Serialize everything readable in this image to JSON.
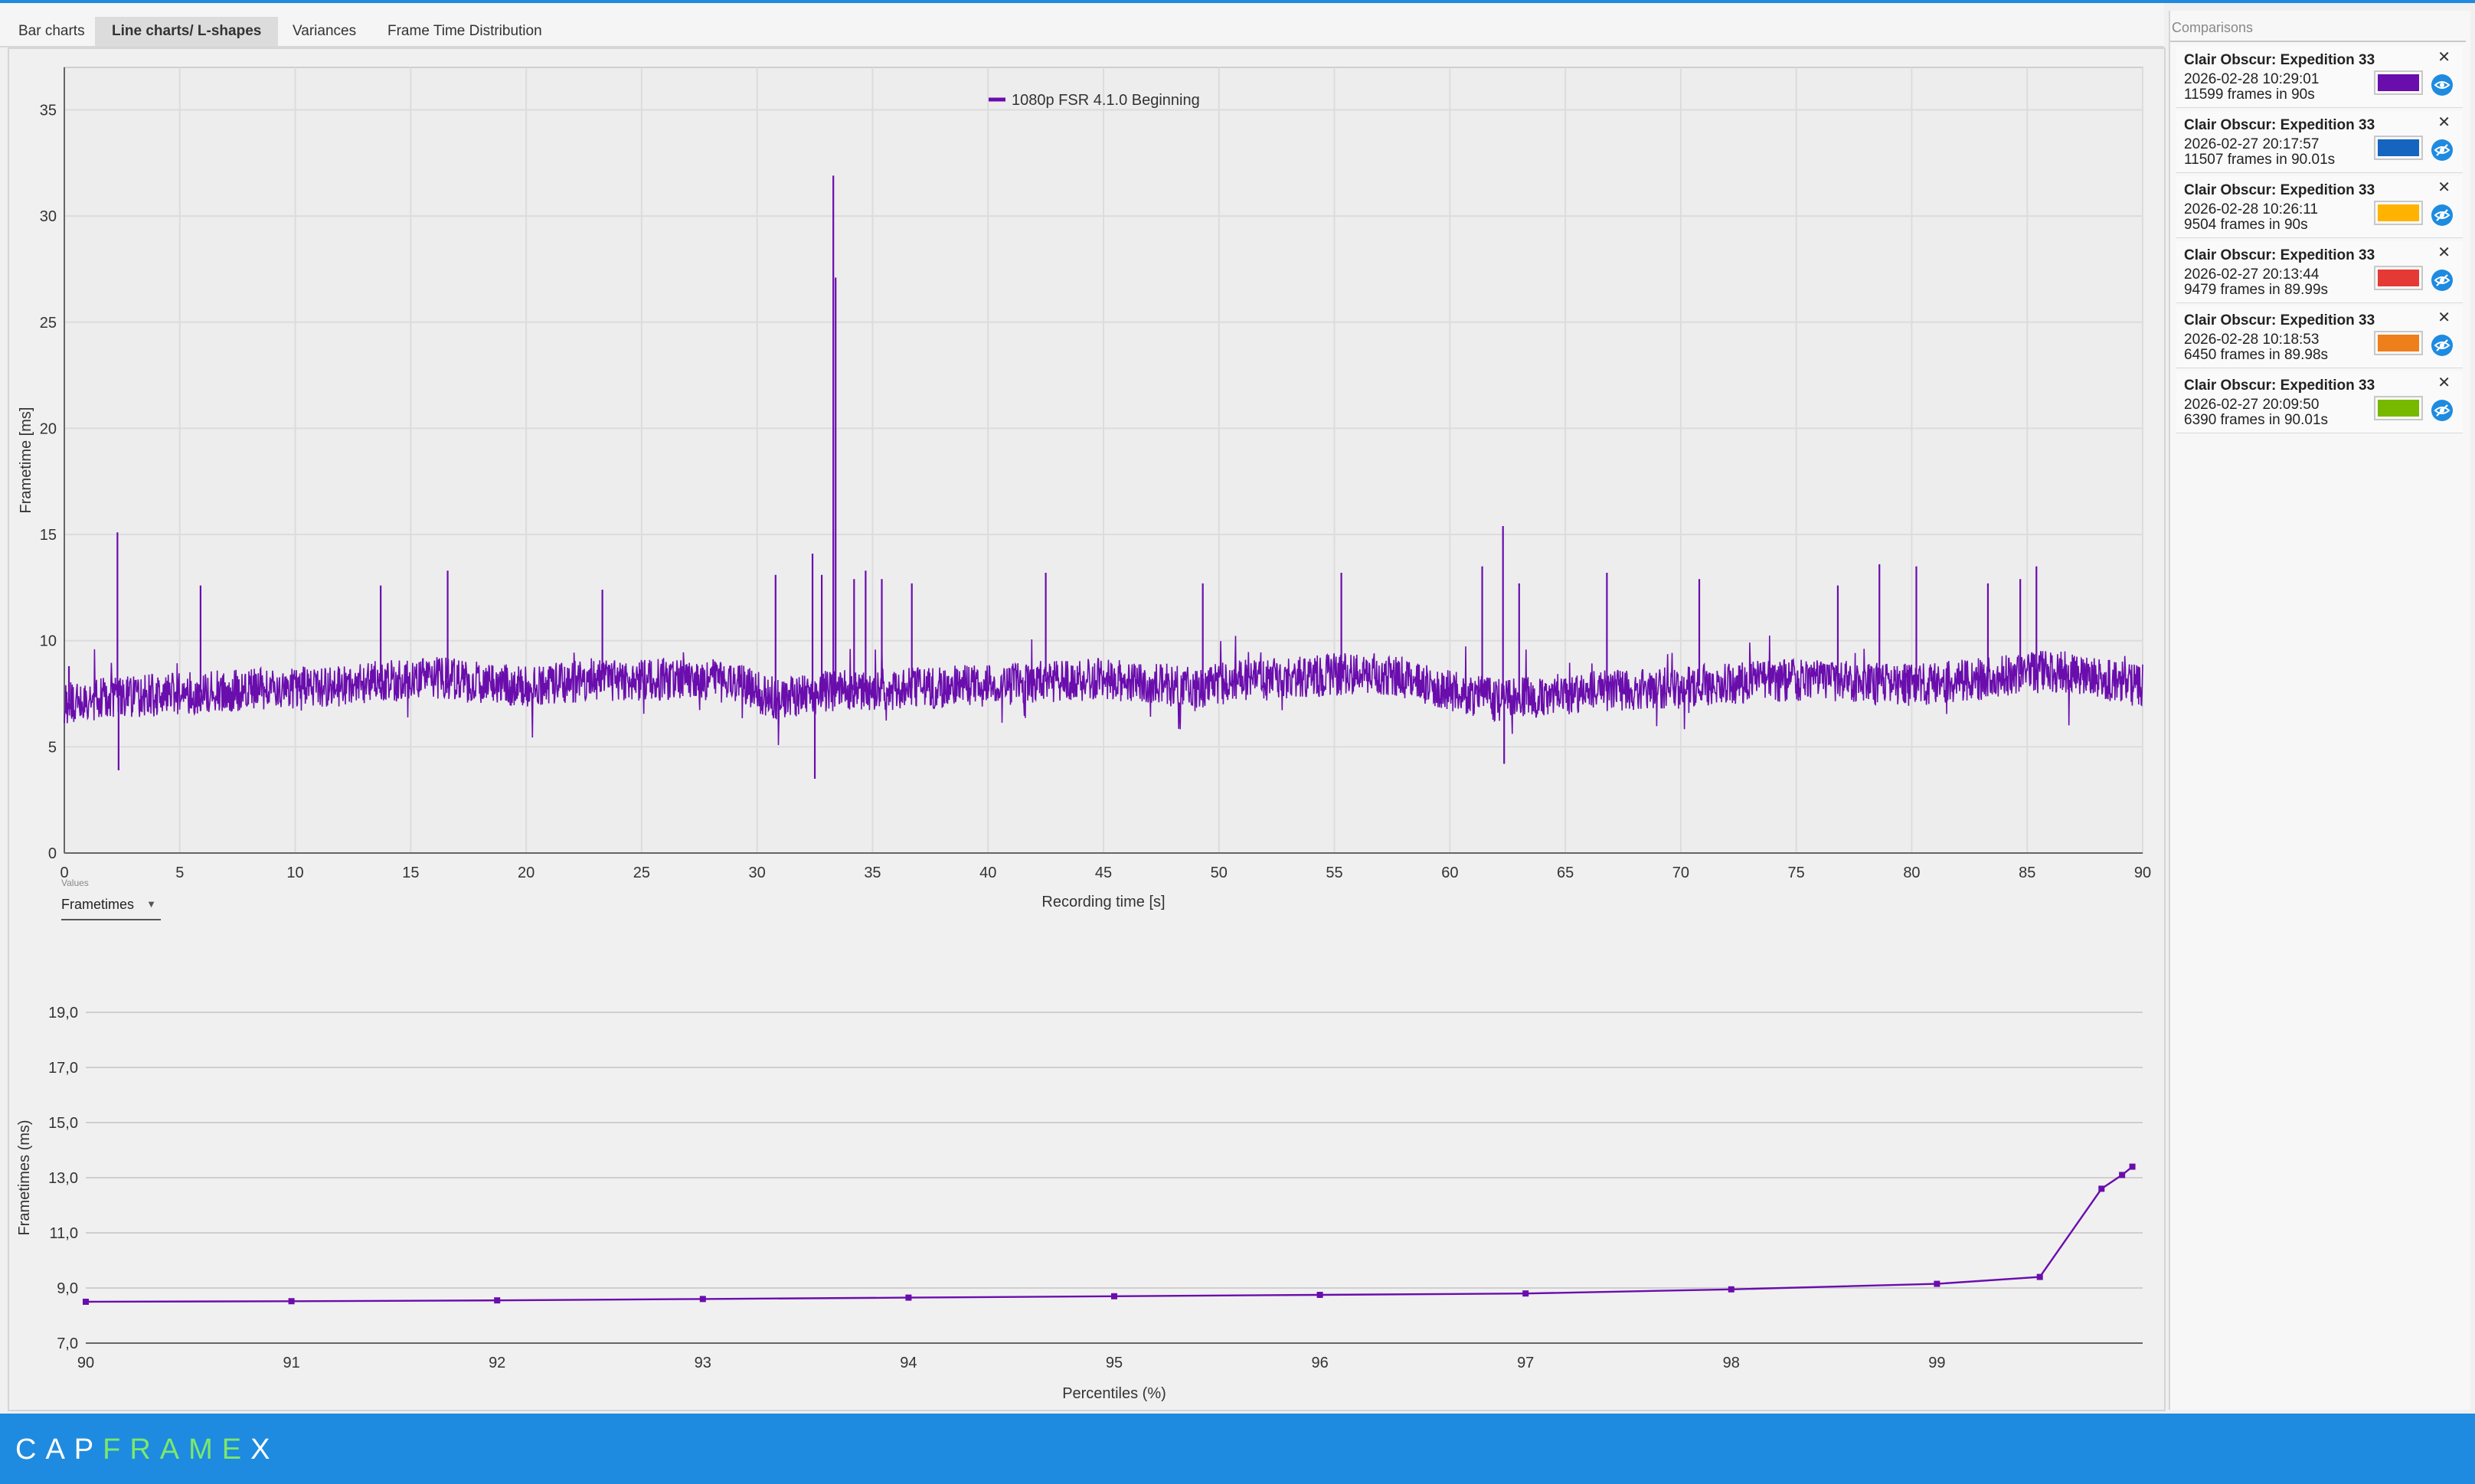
{
  "tabs": [
    {
      "label": "Bar charts"
    },
    {
      "label": "Line charts/ L-shapes"
    },
    {
      "label": "Variances"
    },
    {
      "label": "Frame Time Distribution"
    }
  ],
  "active_tab": "Line charts/ L-shapes",
  "values_selector": {
    "caption": "Values",
    "selected": "Frametimes"
  },
  "comparisons": {
    "title": "Comparisons",
    "items": [
      {
        "title": "Clair Obscur: Expedition 33",
        "date": "2026-02-28 10:29:01",
        "frames": "11599 frames in 90s",
        "color": "#6a0dad",
        "eye": "visible"
      },
      {
        "title": "Clair Obscur: Expedition 33",
        "date": "2026-02-27 20:17:57",
        "frames": "11507 frames in 90.01s",
        "color": "#1565c0",
        "eye": "hidden"
      },
      {
        "title": "Clair Obscur: Expedition 33",
        "date": "2026-02-28 10:26:11",
        "frames": "9504 frames in 90s",
        "color": "#ffb300",
        "eye": "hidden"
      },
      {
        "title": "Clair Obscur: Expedition 33",
        "date": "2026-02-27 20:13:44",
        "frames": "9479 frames in 89.99s",
        "color": "#e53935",
        "eye": "hidden"
      },
      {
        "title": "Clair Obscur: Expedition 33",
        "date": "2026-02-28 10:18:53",
        "frames": "6450 frames in 89.98s",
        "color": "#ef7f1a",
        "eye": "hidden"
      },
      {
        "title": "Clair Obscur: Expedition 33",
        "date": "2026-02-27 20:09:50",
        "frames": "6390 frames in 90.01s",
        "color": "#76b900",
        "eye": "hidden"
      }
    ]
  },
  "footer": {
    "logo_a": "CAP",
    "logo_b": "FRAME",
    "logo_c": "X"
  },
  "chart_data": [
    {
      "type": "line",
      "title": "",
      "xlabel": "Recording time [s]",
      "ylabel": "Frametime [ms]",
      "xlim": [
        0,
        90
      ],
      "ylim": [
        0,
        37
      ],
      "xticks": [
        0,
        5,
        10,
        15,
        20,
        25,
        30,
        35,
        40,
        45,
        50,
        55,
        60,
        65,
        70,
        75,
        80,
        85,
        90
      ],
      "yticks": [
        0,
        5,
        10,
        15,
        20,
        25,
        30,
        35
      ],
      "grid": true,
      "legend": "top-center",
      "series": [
        {
          "name": "1080p FSR 4.1.0 Beginning",
          "color": "#6a0dad",
          "baseline": [
            [
              0,
              7.1
            ],
            [
              2,
              7.3
            ],
            [
              5,
              7.5
            ],
            [
              8,
              7.7
            ],
            [
              10,
              7.8
            ],
            [
              12,
              7.9
            ],
            [
              14,
              8.1
            ],
            [
              16,
              8.3
            ],
            [
              18,
              8.0
            ],
            [
              20,
              7.8
            ],
            [
              23,
              8.2
            ],
            [
              25,
              8.1
            ],
            [
              27,
              8.3
            ],
            [
              29,
              8.0
            ],
            [
              31,
              7.2
            ],
            [
              33,
              7.6
            ],
            [
              35,
              7.7
            ],
            [
              38,
              7.8
            ],
            [
              40,
              7.9
            ],
            [
              43,
              8.1
            ],
            [
              45,
              8.2
            ],
            [
              47,
              8.0
            ],
            [
              49,
              7.8
            ],
            [
              51,
              8.1
            ],
            [
              54,
              8.3
            ],
            [
              56,
              8.5
            ],
            [
              58,
              8.3
            ],
            [
              60,
              7.7
            ],
            [
              62,
              7.2
            ],
            [
              64,
              7.4
            ],
            [
              66,
              7.6
            ],
            [
              68,
              7.7
            ],
            [
              70,
              7.8
            ],
            [
              72,
              8.0
            ],
            [
              74,
              8.1
            ],
            [
              76,
              8.2
            ],
            [
              78,
              8.0
            ],
            [
              80,
              7.9
            ],
            [
              82,
              8.1
            ],
            [
              84,
              8.3
            ],
            [
              86,
              8.6
            ],
            [
              88,
              8.3
            ],
            [
              90,
              7.8
            ]
          ],
          "spikes": [
            [
              0.2,
              8.8
            ],
            [
              2.3,
              15.1
            ],
            [
              2.35,
              3.9
            ],
            [
              5.9,
              12.6
            ],
            [
              13.7,
              12.6
            ],
            [
              16.6,
              13.3
            ],
            [
              23.3,
              12.4
            ],
            [
              30.8,
              13.1
            ],
            [
              32.4,
              14.1
            ],
            [
              32.5,
              3.5
            ],
            [
              32.8,
              13.1
            ],
            [
              33.3,
              31.9
            ],
            [
              33.4,
              27.1
            ],
            [
              34.2,
              12.9
            ],
            [
              34.7,
              13.3
            ],
            [
              35.4,
              12.9
            ],
            [
              36.7,
              12.7
            ],
            [
              42.5,
              13.2
            ],
            [
              49.3,
              12.7
            ],
            [
              55.3,
              13.2
            ],
            [
              61.4,
              13.5
            ],
            [
              62.3,
              15.4
            ],
            [
              62.35,
              4.2
            ],
            [
              63.0,
              12.7
            ],
            [
              66.8,
              13.2
            ],
            [
              70.8,
              12.9
            ],
            [
              76.8,
              12.6
            ],
            [
              78.6,
              13.6
            ],
            [
              80.2,
              13.5
            ],
            [
              83.3,
              12.7
            ],
            [
              84.7,
              12.9
            ],
            [
              85.4,
              13.5
            ]
          ]
        }
      ]
    },
    {
      "type": "line",
      "title": "",
      "xlabel": "Percentiles (%)",
      "ylabel": "Frametimes (ms)",
      "xlim": [
        90,
        100
      ],
      "ylim": [
        7.0,
        19.0
      ],
      "xticks": [
        90,
        91,
        92,
        93,
        94,
        95,
        96,
        97,
        98,
        99
      ],
      "yticks": [
        "7,0",
        "9,0",
        "11,0",
        "13,0",
        "15,0",
        "17,0",
        "19,0"
      ],
      "grid": "horizontal",
      "series": [
        {
          "name": "",
          "color": "#6a0dad",
          "points": [
            [
              90,
              8.5
            ],
            [
              91,
              8.52
            ],
            [
              92,
              8.55
            ],
            [
              93,
              8.6
            ],
            [
              94,
              8.65
            ],
            [
              95,
              8.7
            ],
            [
              96,
              8.75
            ],
            [
              97,
              8.8
            ],
            [
              98,
              8.95
            ],
            [
              99,
              9.15
            ],
            [
              99.5,
              9.4
            ],
            [
              99.8,
              12.6
            ],
            [
              99.9,
              13.1
            ],
            [
              99.95,
              13.4
            ]
          ]
        }
      ]
    }
  ]
}
